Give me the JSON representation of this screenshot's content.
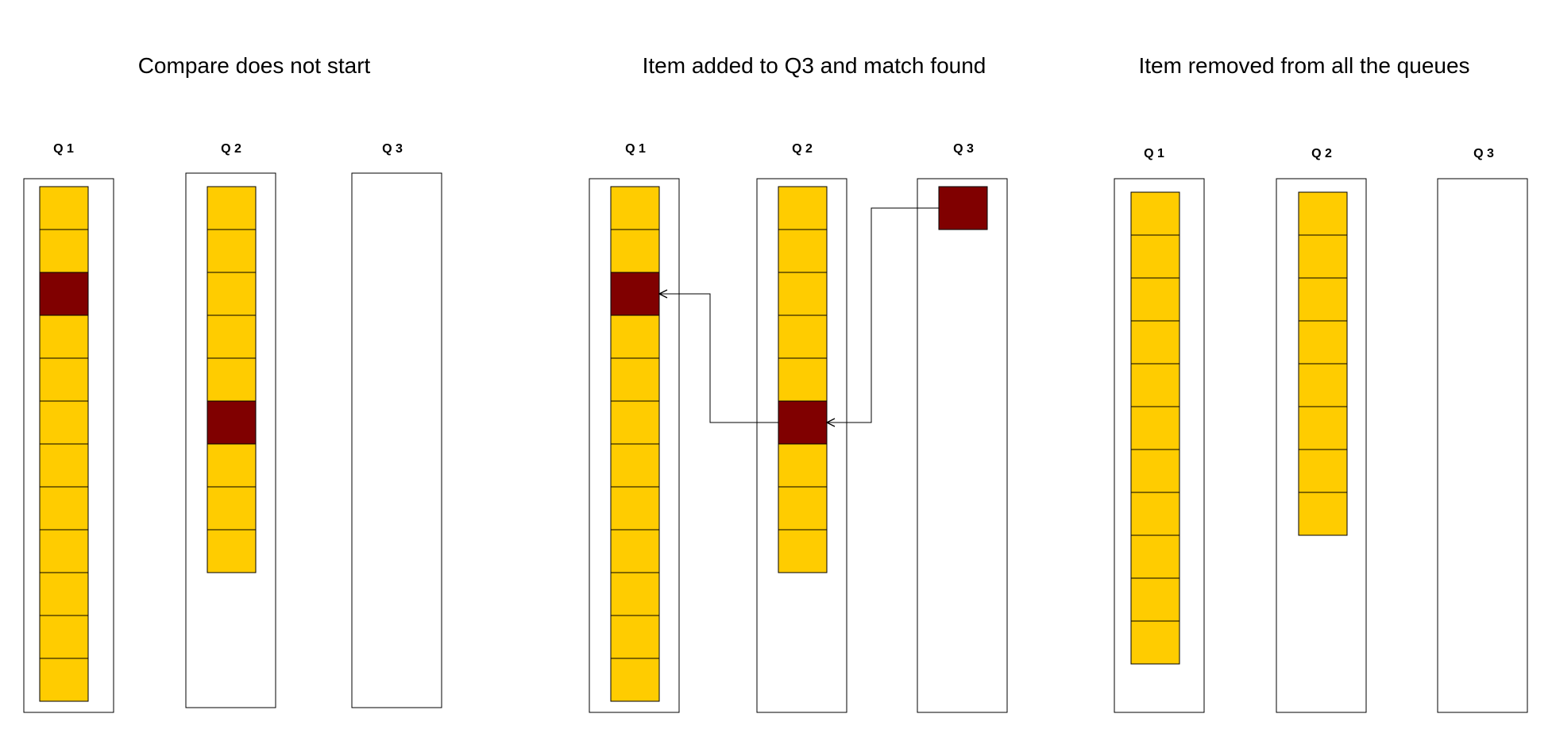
{
  "colors": {
    "item": "#FFCC00",
    "match": "#800000",
    "stroke": "#000000",
    "background": "#FFFFFF"
  },
  "panels": [
    {
      "title": "Compare does not start",
      "queues": [
        {
          "label": "Q 1",
          "item_count": 12,
          "match_indices": [
            2
          ]
        },
        {
          "label": "Q 2",
          "item_count": 9,
          "match_indices": [
            5
          ]
        },
        {
          "label": "Q 3",
          "item_count": 0,
          "match_indices": []
        }
      ]
    },
    {
      "title": "Item added to Q3 and match found",
      "queues": [
        {
          "label": "Q 1",
          "item_count": 12,
          "match_indices": [
            2
          ]
        },
        {
          "label": "Q 2",
          "item_count": 9,
          "match_indices": [
            5
          ]
        },
        {
          "label": "Q 3",
          "item_count": 1,
          "match_indices": [
            0
          ]
        }
      ]
    },
    {
      "title": "Item removed from all the queues",
      "queues": [
        {
          "label": "Q 1",
          "item_count": 11,
          "match_indices": []
        },
        {
          "label": "Q 2",
          "item_count": 8,
          "match_indices": []
        },
        {
          "label": "Q 3",
          "item_count": 0,
          "match_indices": []
        }
      ]
    }
  ]
}
